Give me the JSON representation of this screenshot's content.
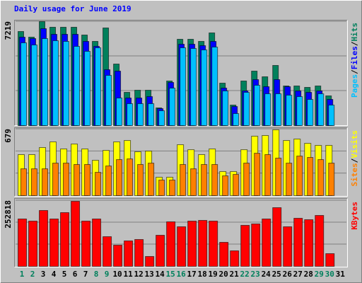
{
  "chart_data": {
    "type": "bar",
    "title": "Daily usage for June 2019",
    "title_color": "#0000ff",
    "categories": [
      "1",
      "2",
      "3",
      "4",
      "5",
      "6",
      "7",
      "8",
      "9",
      "10",
      "11",
      "12",
      "13",
      "14",
      "15",
      "16",
      "17",
      "18",
      "19",
      "20",
      "21",
      "22",
      "23",
      "24",
      "25",
      "26",
      "27",
      "28",
      "29",
      "30",
      "31"
    ],
    "category_colors": [
      "#00805c",
      "#00805c",
      "#000000",
      "#000000",
      "#000000",
      "#000000",
      "#000000",
      "#00805c",
      "#00805c",
      "#000000",
      "#000000",
      "#000000",
      "#000000",
      "#000000",
      "#00805c",
      "#00805c",
      "#000000",
      "#000000",
      "#000000",
      "#000000",
      "#000000",
      "#00805c",
      "#00805c",
      "#000000",
      "#000000",
      "#000000",
      "#000000",
      "#000000",
      "#00805c",
      "#00805c",
      "#000000"
    ],
    "legend_separator": "/",
    "grid": true,
    "panels": [
      {
        "ylim": [
          0,
          7219
        ],
        "yticks": [
          7219
        ],
        "series": [
          {
            "name": "Hits",
            "color": "#00805c",
            "values": [
              6531,
              6138,
              7219,
              6826,
              6826,
              6826,
              6286,
              5844,
              6777,
              4272,
              2308,
              2455,
              2455,
              1228,
              3094,
              5991,
              5991,
              5844,
              6433,
              2946,
              1424,
              3094,
              3781,
              3388,
              4174,
              2750,
              2750,
              2652,
              2750,
              2063,
              null
            ]
          },
          {
            "name": "Files",
            "color": "#0000ff",
            "values": [
              6138,
              6040,
              6728,
              6335,
              6335,
              6335,
              5844,
              5500,
              3879,
              3781,
              1915,
              1915,
              2013,
              1178,
              2995,
              5647,
              5647,
              5549,
              5844,
              2603,
              1326,
              2406,
              3192,
              2701,
              3192,
              2701,
              2406,
              2308,
              2406,
              1817,
              null
            ]
          },
          {
            "name": "Pages",
            "color": "#00c0ff",
            "values": [
              5746,
              5598,
              6040,
              5893,
              5844,
              5500,
              5156,
              5402,
              3486,
              1915,
              1522,
              1522,
              1522,
              1031,
              2603,
              5402,
              5353,
              5254,
              5451,
              2406,
              835,
              2308,
              2799,
              2210,
              2210,
              2112,
              2013,
              1817,
              2210,
              1424,
              null
            ]
          }
        ]
      },
      {
        "ylim": [
          0,
          679
        ],
        "yticks": [
          679
        ],
        "series": [
          {
            "name": "Visits",
            "color": "#ffff00",
            "values": [
              419,
              419,
              491,
              549,
              477,
              527,
              477,
              361,
              462,
              549,
              563,
              448,
              455,
              188,
              188,
              520,
              469,
              419,
              477,
              246,
              246,
              469,
              607,
              614,
              672,
              563,
              578,
              534,
              513,
              513,
              null
            ]
          },
          {
            "name": "Sites",
            "color": "#ff8000",
            "values": [
              274,
              274,
              274,
              332,
              332,
              318,
              318,
              238,
              303,
              368,
              375,
              318,
              332,
              159,
              159,
              318,
              274,
              318,
              318,
              202,
              217,
              332,
              433,
              419,
              383,
              332,
              404,
              390,
              368,
              332,
              null
            ]
          }
        ]
      },
      {
        "ylim": [
          0,
          252818
        ],
        "yticks": [
          252818
        ],
        "series": [
          {
            "name": "KBytes",
            "color": "#ff0000",
            "values": [
              182142,
              173984,
              214762,
              182142,
              206607,
              250102,
              173984,
              182142,
              114177,
              81555,
              97866,
              103303,
              38059,
              119614,
              171266,
              152236,
              173984,
              176703,
              173984,
              92429,
              59807,
              157673,
              163110,
              182142,
              225636,
              152236,
              184859,
              179421,
              195732,
              48933,
              null
            ]
          }
        ]
      }
    ]
  }
}
